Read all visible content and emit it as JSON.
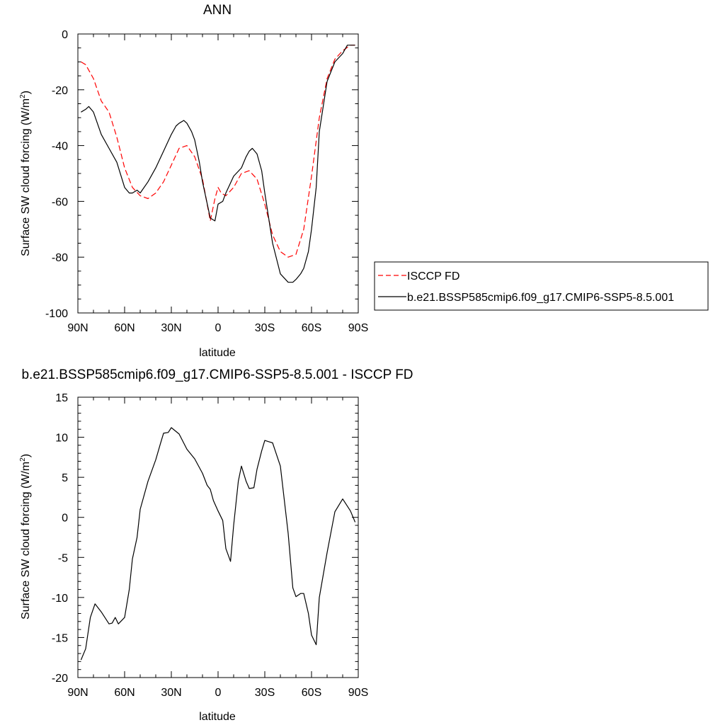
{
  "chart_data": [
    {
      "type": "line",
      "title": "ANN",
      "xlabel": "latitude",
      "ylabel": "Surface SW cloud forcing (W/m",
      "ylabel_sup": "2",
      "ylabel_tail": ")",
      "xlim": [
        90,
        -90
      ],
      "ylim": [
        -100,
        0
      ],
      "x_ticks": [
        90,
        60,
        30,
        0,
        -30,
        -60,
        -90
      ],
      "x_tick_labels": [
        "90N",
        "60N",
        "30N",
        "0",
        "30S",
        "60S",
        "90S"
      ],
      "y_ticks": [
        0,
        -20,
        -40,
        -60,
        -80,
        -100
      ],
      "y_tick_labels": [
        "0",
        "-20",
        "-40",
        "-60",
        "-80",
        "-100"
      ],
      "grid": false,
      "legend_position": "right",
      "series": [
        {
          "name": "ISCCP FD",
          "color": "#ff0000",
          "dash": "dashed",
          "x": [
            88,
            85,
            80,
            75,
            70,
            65,
            60,
            55,
            50,
            45,
            40,
            35,
            30,
            25,
            20,
            15,
            10,
            5,
            2,
            0,
            -2,
            -5,
            -10,
            -15,
            -20,
            -25,
            -30,
            -35,
            -40,
            -45,
            -50,
            -55,
            -60,
            -65,
            -70,
            -75,
            -80,
            -85,
            -88
          ],
          "y": [
            -10,
            -11,
            -16,
            -24,
            -28,
            -37,
            -48,
            -55,
            -58,
            -59,
            -57,
            -53,
            -47,
            -41,
            -40,
            -44,
            -52,
            -67,
            -59,
            -55,
            -57,
            -58,
            -55,
            -50,
            -49,
            -52,
            -61,
            -72,
            -78,
            -80,
            -79,
            -70,
            -51,
            -30,
            -16,
            -9,
            -6,
            -4,
            -4
          ]
        },
        {
          "name": "b.e21.BSSP585cmip6.f09_g17.CMIP6-SSP5-8.5.001",
          "color": "#000000",
          "dash": "solid",
          "x": [
            88,
            85,
            83,
            80,
            75,
            70,
            65,
            60,
            57,
            55,
            52,
            50,
            45,
            40,
            35,
            30,
            27,
            25,
            22,
            20,
            17,
            15,
            12,
            10,
            5,
            2,
            0,
            -3,
            -5,
            -10,
            -15,
            -18,
            -20,
            -22,
            -25,
            -28,
            -30,
            -35,
            -40,
            -45,
            -48,
            -50,
            -53,
            -55,
            -58,
            -60,
            -63,
            -65,
            -70,
            -75,
            -80,
            -83,
            -85,
            -88
          ],
          "y": [
            -28,
            -27,
            -26,
            -28,
            -36,
            -41,
            -46,
            -55,
            -57,
            -57,
            -56,
            -57,
            -53,
            -48,
            -42,
            -36,
            -33,
            -32,
            -31,
            -32,
            -35,
            -38,
            -46,
            -53,
            -66,
            -67,
            -61,
            -60,
            -57,
            -51,
            -48,
            -44,
            -42,
            -41,
            -43,
            -49,
            -57,
            -75,
            -86,
            -89,
            -89,
            -88,
            -86,
            -84,
            -78,
            -70,
            -55,
            -35,
            -17,
            -10,
            -7,
            -4,
            -4,
            -4
          ]
        }
      ]
    },
    {
      "type": "line",
      "title": "b.e21.BSSP585cmip6.f09_g17.CMIP6-SSP5-8.5.001 - ISCCP FD",
      "xlabel": "latitude",
      "ylabel": "Surface SW cloud forcing (W/m",
      "ylabel_sup": "2",
      "ylabel_tail": ")",
      "xlim": [
        90,
        -90
      ],
      "ylim": [
        -20,
        15
      ],
      "x_ticks": [
        90,
        60,
        30,
        0,
        -30,
        -60,
        -90
      ],
      "x_tick_labels": [
        "90N",
        "60N",
        "30N",
        "0",
        "30S",
        "60S",
        "90S"
      ],
      "y_ticks": [
        15,
        10,
        5,
        0,
        -5,
        -10,
        -15,
        -20
      ],
      "y_tick_labels": [
        "15",
        "10",
        "5",
        "0",
        "-5",
        "-10",
        "-15",
        "-20"
      ],
      "grid": false,
      "series": [
        {
          "color": "#000000",
          "dash": "solid",
          "x": [
            88,
            85,
            82,
            79,
            75,
            70,
            68,
            66,
            64,
            60,
            57,
            55,
            52,
            50,
            45,
            40,
            37,
            35,
            32,
            30,
            25,
            20,
            15,
            10,
            7,
            5,
            3,
            0,
            -3,
            -5,
            -8,
            -10,
            -13,
            -15,
            -18,
            -20,
            -23,
            -25,
            -28,
            -30,
            -35,
            -40,
            -45,
            -48,
            -50,
            -53,
            -55,
            -58,
            -60,
            -63,
            -65,
            -70,
            -75,
            -80,
            -85,
            -88
          ],
          "y": [
            -17.8,
            -16.4,
            -12.5,
            -10.8,
            -11.8,
            -13.3,
            -13.2,
            -12.5,
            -13.3,
            -12.5,
            -9,
            -5.2,
            -2.5,
            1,
            4.5,
            7.2,
            9.2,
            10.5,
            10.6,
            11.2,
            10.4,
            8.5,
            7.3,
            5.5,
            4,
            3.5,
            2.1,
            0.8,
            -0.4,
            -3.9,
            -5.5,
            -1,
            4.5,
            6.4,
            4.5,
            3.6,
            3.7,
            6,
            8.3,
            9.6,
            9.3,
            6.4,
            -2,
            -8.8,
            -9.9,
            -9.5,
            -9.5,
            -12,
            -14.7,
            -15.9,
            -10,
            -4.4,
            0.7,
            2.3,
            0.8,
            -0.6
          ]
        }
      ]
    }
  ]
}
